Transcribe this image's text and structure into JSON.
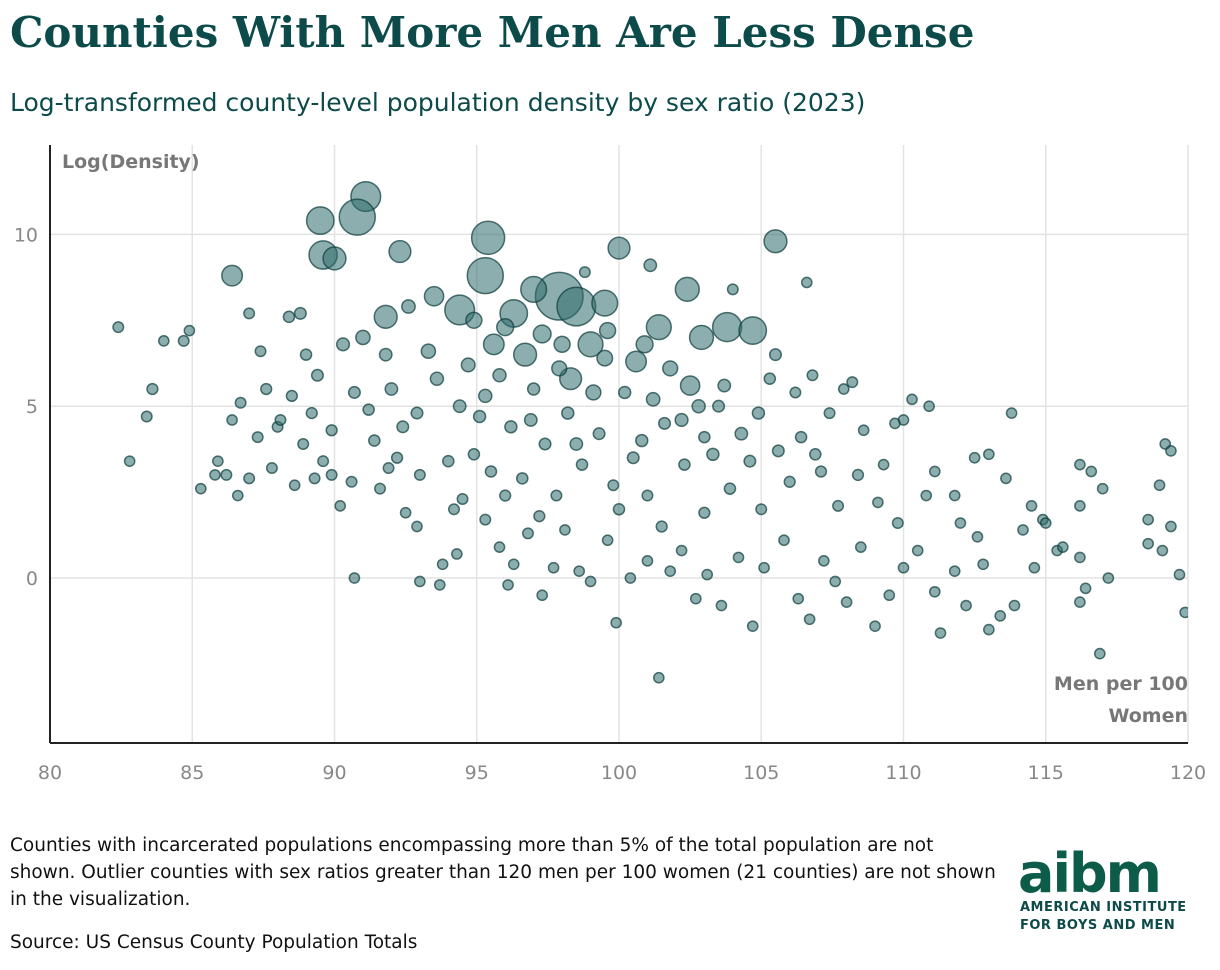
{
  "chart_data": {
    "type": "scatter",
    "title": "Counties With More Men Are Less Dense",
    "subtitle": "Log-transformed county-level population density by sex ratio (2023)",
    "y_label": "Log(Density)",
    "x_label": "Men per 100 Women",
    "xlim": [
      80,
      120
    ],
    "ylim": [
      -4.8,
      12.6
    ],
    "xticks": [
      80,
      85,
      90,
      95,
      100,
      105,
      110,
      115,
      120
    ],
    "yticks": [
      0,
      5,
      10
    ],
    "grid": true,
    "color": "#2f6b6b",
    "x": [
      91.1,
      90.8,
      89.5,
      89.6,
      90.0,
      95.4,
      95.3,
      97.9,
      98.5,
      99.5,
      100.0,
      105.5,
      102.4,
      103.8,
      104.7,
      101.4,
      92.3,
      86.4,
      91.8,
      94.4,
      96.3,
      97.0,
      99.0,
      102.9,
      93.5,
      96.7,
      95.6,
      98.3,
      100.6,
      102.5,
      82.4,
      82.8,
      83.4,
      83.6,
      84.0,
      84.7,
      84.9,
      85.3,
      85.8,
      86.2,
      86.6,
      87.0,
      87.4,
      87.6,
      88.0,
      88.4,
      88.8,
      89.0,
      89.4,
      88.6,
      89.9,
      90.2,
      90.7,
      91.2,
      91.6,
      92.0,
      92.4,
      92.9,
      93.0,
      93.7,
      93.8,
      94.3,
      94.5,
      94.9,
      95.3,
      95.8,
      96.1,
      96.3,
      96.8,
      97.3,
      97.7,
      98.1,
      98.6,
      99.0,
      99.6,
      99.9,
      100.4,
      101.0,
      101.4,
      101.8,
      102.2,
      102.7,
      103.1,
      103.6,
      104.2,
      104.7,
      105.1,
      105.8,
      106.3,
      106.7,
      107.2,
      107.6,
      108.0,
      108.5,
      109.0,
      109.5,
      110.0,
      110.5,
      111.1,
      111.3,
      111.8,
      112.2,
      112.8,
      113.0,
      113.4,
      113.9,
      114.6,
      115.4,
      116.2,
      116.4,
      116.9,
      117.0,
      116.6,
      116.2,
      116.2,
      118.6,
      119.1,
      119.4,
      119.7,
      119.9,
      119.2,
      119.4,
      119.0,
      118.6,
      117.2,
      116.2,
      115.6,
      114.9,
      114.5,
      113.8,
      113.0,
      112.5,
      111.8,
      111.1,
      110.9,
      110.3,
      110.0,
      109.7,
      109.3,
      109.1,
      108.6,
      108.2,
      107.9,
      107.4,
      106.8,
      106.6,
      106.2,
      105.5,
      105.3,
      104.0,
      103.5,
      103.0,
      102.3,
      101.6,
      101.1,
      101.0,
      100.5,
      100.2,
      99.8,
      99.3,
      98.8,
      98.7,
      98.2,
      97.8,
      97.4,
      97.0,
      96.6,
      96.2,
      95.8,
      95.5,
      95.1,
      94.7,
      94.4,
      94.0,
      93.6,
      93.3,
      92.9,
      92.6,
      92.2,
      91.8,
      91.4,
      91.0,
      90.7,
      90.3,
      89.9,
      89.6,
      89.2,
      88.9,
      88.5,
      88.1,
      87.8,
      87.3,
      87.0,
      86.7,
      86.4,
      85.9,
      103.9,
      104.6,
      105.0,
      106.0,
      106.9,
      107.7,
      108.4,
      109.8,
      110.8,
      112.0,
      112.6,
      113.6,
      114.2,
      115.0,
      98.0,
      97.3,
      99.6,
      100.9,
      101.8,
      96.0,
      94.9,
      99.1,
      98.5,
      100.8,
      102.2,
      103.3,
      104.3,
      96.9,
      95.3,
      97.9,
      99.5,
      101.2,
      102.8,
      103.7,
      104.9,
      105.6,
      106.4,
      107.1,
      100.0,
      101.5,
      103.0,
      97.2,
      96.0,
      94.2,
      93.0,
      91.9,
      90.6,
      89.3,
      92.5
    ],
    "y": [
      11.1,
      10.5,
      10.4,
      9.4,
      9.3,
      9.9,
      8.8,
      8.2,
      7.9,
      8.0,
      9.6,
      9.8,
      8.4,
      7.3,
      7.2,
      7.3,
      9.5,
      8.8,
      7.6,
      7.8,
      7.7,
      8.4,
      6.8,
      7.0,
      8.2,
      6.5,
      6.8,
      5.8,
      6.3,
      5.6,
      7.3,
      3.4,
      4.7,
      5.5,
      6.9,
      6.9,
      7.2,
      2.6,
      3.0,
      3.0,
      2.4,
      7.7,
      6.6,
      5.5,
      4.4,
      7.6,
      7.7,
      6.5,
      5.9,
      2.7,
      3.0,
      2.1,
      0.0,
      4.9,
      2.6,
      5.5,
      4.4,
      1.5,
      -0.1,
      -0.2,
      0.4,
      0.7,
      2.3,
      3.6,
      1.7,
      0.9,
      -0.2,
      0.4,
      1.3,
      -0.5,
      0.3,
      1.4,
      0.2,
      -0.1,
      1.1,
      -1.3,
      0.0,
      0.5,
      -2.9,
      0.2,
      0.8,
      -0.6,
      0.1,
      -0.8,
      0.6,
      -1.4,
      0.3,
      1.1,
      -0.6,
      -1.2,
      0.5,
      -0.1,
      -0.7,
      0.9,
      -1.4,
      -0.5,
      0.3,
      0.8,
      -0.4,
      -1.6,
      0.2,
      -0.8,
      0.4,
      -1.5,
      -1.1,
      -0.8,
      0.3,
      0.8,
      -0.7,
      -0.3,
      -2.2,
      2.6,
      3.1,
      3.3,
      2.1,
      1.0,
      0.8,
      1.5,
      0.1,
      -1.0,
      3.9,
      3.7,
      2.7,
      1.7,
      0.0,
      0.6,
      0.9,
      1.7,
      2.1,
      4.8,
      3.6,
      3.5,
      2.4,
      3.1,
      5.0,
      5.2,
      4.6,
      4.5,
      3.3,
      2.2,
      4.3,
      5.7,
      5.5,
      4.8,
      5.9,
      8.6,
      5.4,
      6.5,
      5.8,
      8.4,
      5.0,
      4.1,
      3.3,
      4.5,
      9.1,
      2.4,
      3.5,
      5.4,
      2.7,
      4.2,
      8.9,
      3.3,
      4.8,
      2.4,
      3.9,
      5.5,
      2.9,
      4.4,
      5.9,
      3.1,
      4.7,
      6.2,
      5.0,
      3.4,
      5.8,
      6.6,
      4.8,
      7.9,
      3.5,
      6.5,
      4.0,
      7.0,
      5.4,
      6.8,
      4.3,
      3.4,
      4.8,
      3.9,
      5.3,
      4.6,
      3.2,
      4.1,
      2.9,
      5.1,
      4.6,
      3.4,
      2.6,
      3.4,
      2.0,
      2.8,
      3.6,
      2.1,
      3.0,
      1.6,
      2.4,
      1.6,
      1.2,
      2.9,
      1.4,
      1.6,
      6.8,
      7.1,
      7.2,
      6.8,
      6.1,
      7.3,
      7.5,
      5.4,
      3.9,
      4.0,
      4.6,
      3.6,
      4.2,
      4.6,
      5.3,
      6.1,
      6.4,
      5.2,
      5.0,
      5.6,
      4.8,
      3.7,
      4.1,
      3.1,
      2.0,
      1.5,
      1.9,
      1.8,
      2.4,
      2.0,
      3.0,
      3.2,
      2.8,
      2.9,
      1.9
    ],
    "sizes": [
      1500,
      2500,
      1200,
      1300,
      700,
      2000,
      2500,
      5000,
      3000,
      1000,
      600,
      700,
      800,
      1400,
      1200,
      900,
      600,
      500,
      700,
      1500,
      1200,
      1000,
      900,
      800,
      400,
      700,
      500,
      600,
      500,
      400,
      20,
      15,
      20,
      25,
      15,
      20,
      15,
      15,
      15,
      20,
      15,
      20,
      20,
      25,
      20,
      30,
      40,
      30,
      40,
      15,
      20,
      15,
      15,
      30,
      20,
      60,
      40,
      15,
      15,
      15,
      15,
      15,
      20,
      30,
      20,
      15,
      15,
      15,
      20,
      15,
      15,
      15,
      15,
      15,
      15,
      15,
      15,
      15,
      15,
      15,
      15,
      15,
      15,
      15,
      15,
      15,
      15,
      15,
      15,
      15,
      15,
      15,
      15,
      15,
      15,
      15,
      15,
      15,
      15,
      15,
      15,
      15,
      15,
      15,
      15,
      15,
      15,
      15,
      15,
      15,
      15,
      15,
      15,
      15,
      15,
      15,
      15,
      15,
      15,
      15,
      15,
      15,
      15,
      15,
      15,
      15,
      15,
      15,
      15,
      15,
      15,
      15,
      15,
      15,
      15,
      15,
      15,
      15,
      15,
      15,
      15,
      20,
      15,
      20,
      20,
      15,
      20,
      40,
      30,
      20,
      40,
      30,
      30,
      40,
      60,
      20,
      40,
      50,
      20,
      40,
      20,
      30,
      50,
      20,
      40,
      50,
      30,
      50,
      80,
      30,
      50,
      100,
      60,
      30,
      80,
      120,
      40,
      90,
      25,
      60,
      30,
      120,
      40,
      70,
      25,
      20,
      25,
      20,
      25,
      20,
      20,
      20,
      20,
      20,
      15,
      15,
      30,
      40,
      20,
      25,
      30,
      20,
      25,
      20,
      15,
      15,
      15,
      15,
      15,
      15,
      200,
      300,
      200,
      250,
      150,
      250,
      200,
      150,
      60,
      50,
      70,
      50,
      60,
      60,
      80,
      150,
      180,
      90,
      80,
      60,
      50,
      40,
      30,
      25,
      30,
      25,
      25,
      25,
      25,
      20,
      20,
      20,
      20,
      20,
      15
    ]
  },
  "footer": {
    "note": "Counties with incarcerated populations encompassing more than 5% of the total population are not shown. Outlier counties with sex ratios greater than 120 men per 100 women (21 counties) are not shown in the visualization.",
    "source": "Source: US Census County Population Totals",
    "logo": "aibm",
    "org_line1": "AMERICAN INSTITUTE",
    "org_line2": "FOR BOYS AND MEN"
  }
}
